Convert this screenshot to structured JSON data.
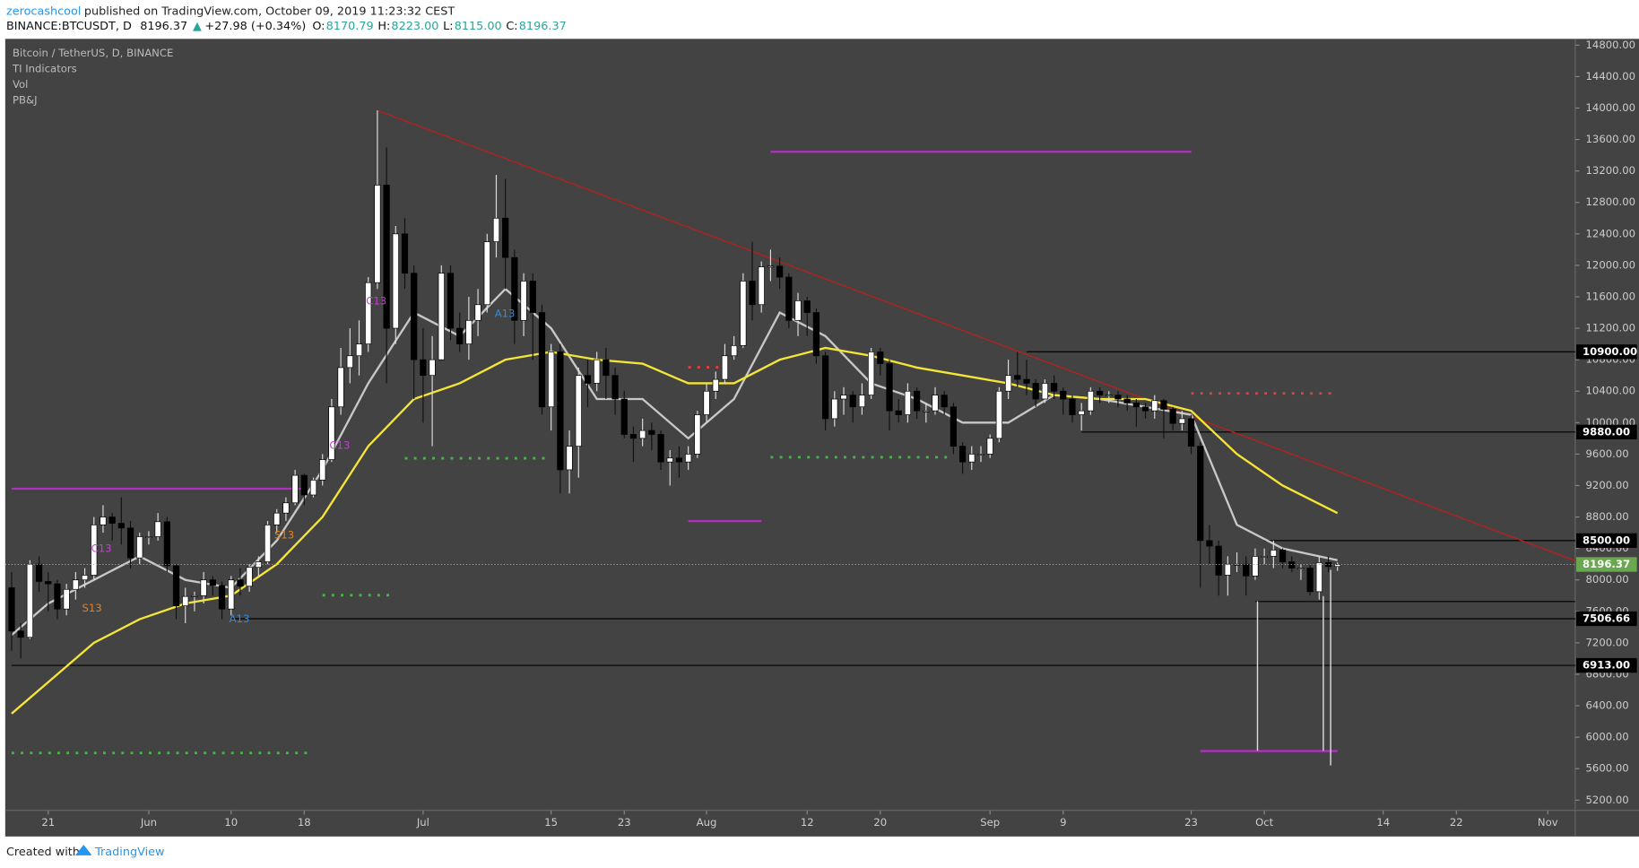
{
  "header": {
    "publisher": "zerocashcool",
    "published": "published on TradingView.com, October 09, 2019 11:23:32 CEST",
    "symbol": "BINANCE:BTCUSDT, D",
    "price": "8196.37",
    "arrow": "▲",
    "change": "+27.98 (+0.34%)",
    "ohlc": [
      {
        "key": "O:",
        "value": "8170.79"
      },
      {
        "key": "H:",
        "value": "8223.00"
      },
      {
        "key": "L:",
        "value": "8115.00"
      },
      {
        "key": "C:",
        "value": "8196.37"
      }
    ]
  },
  "footer": {
    "created": "Created with",
    "brand": "TradingView"
  },
  "chart_data": {
    "type": "candlestick",
    "legend": [
      "Bitcoin / TetherUS, D, BINANCE",
      "TI Indicators",
      "Vol",
      "PB&J"
    ],
    "xlim": [
      -0.7,
      171
    ],
    "ylim": [
      5070,
      14880
    ],
    "xticks": [
      {
        "value": 4,
        "label": "21"
      },
      {
        "value": 15,
        "label": "Jun"
      },
      {
        "value": 24,
        "label": "10"
      },
      {
        "value": 32,
        "label": "18"
      },
      {
        "value": 45,
        "label": "Jul"
      },
      {
        "value": 59,
        "label": "15"
      },
      {
        "value": 67,
        "label": "23"
      },
      {
        "value": 76,
        "label": "Aug"
      },
      {
        "value": 87,
        "label": "12"
      },
      {
        "value": 95,
        "label": "20"
      },
      {
        "value": 107,
        "label": "Sep"
      },
      {
        "value": 115,
        "label": "9"
      },
      {
        "value": 129,
        "label": "23"
      },
      {
        "value": 137,
        "label": "Oct"
      },
      {
        "value": 150,
        "label": "14"
      },
      {
        "value": 158,
        "label": "22"
      },
      {
        "value": 168,
        "label": "Nov"
      }
    ],
    "yticks": [
      {
        "value": 5200,
        "label": "5200.00"
      },
      {
        "value": 5600,
        "label": "5600.00"
      },
      {
        "value": 6000,
        "label": "6000.00"
      },
      {
        "value": 6400,
        "label": "6400.00"
      },
      {
        "value": 6800,
        "label": "6800.00"
      },
      {
        "value": 7200,
        "label": "7200.00"
      },
      {
        "value": 7600,
        "label": "7600.00"
      },
      {
        "value": 8000,
        "label": "8000.00"
      },
      {
        "value": 8400,
        "label": "8400.00"
      },
      {
        "value": 8800,
        "label": "8800.00"
      },
      {
        "value": 9200,
        "label": "9200.00"
      },
      {
        "value": 9600,
        "label": "9600.00"
      },
      {
        "value": 10000,
        "label": "10000.00"
      },
      {
        "value": 10400,
        "label": "10400.00"
      },
      {
        "value": 10800,
        "label": "10800.00"
      },
      {
        "value": 11200,
        "label": "11200.00"
      },
      {
        "value": 11600,
        "label": "11600.00"
      },
      {
        "value": 12000,
        "label": "12000.00"
      },
      {
        "value": 12400,
        "label": "12400.00"
      },
      {
        "value": 12800,
        "label": "12800.00"
      },
      {
        "value": 13200,
        "label": "13200.00"
      },
      {
        "value": 13600,
        "label": "13600.00"
      },
      {
        "value": 14000,
        "label": "14000.00"
      },
      {
        "value": 14400,
        "label": "14400.00"
      },
      {
        "value": 14800,
        "label": "14800.00"
      }
    ],
    "open": [
      7900,
      7350,
      7270,
      8200,
      7980,
      7950,
      7630,
      7880,
      8000,
      8060,
      8700,
      8800,
      8720,
      8660,
      8280,
      8550,
      8550,
      8740,
      8180,
      7670,
      7790,
      7800,
      8000,
      7930,
      7630,
      8000,
      7920,
      8160,
      8230,
      8700,
      8850,
      8980,
      9330,
      9080,
      9270,
      9530,
      10200,
      10700,
      10850,
      11000,
      11780,
      13020,
      11200,
      12400,
      11900,
      10800,
      10600,
      10800,
      11900,
      11200,
      11000,
      11300,
      11500,
      12300,
      12600,
      12100,
      11300,
      11800,
      11400,
      10200,
      10900,
      9400,
      9700,
      10600,
      10500,
      10800,
      10600,
      10300,
      9850,
      9800,
      9900,
      9850,
      9500,
      9550,
      9500,
      9600,
      10100,
      10400,
      10550,
      10850,
      10980,
      11800,
      11500,
      11980,
      11990,
      11850,
      11300,
      11550,
      11400,
      10850,
      10050,
      10300,
      10350,
      10200,
      10350,
      10900,
      10750,
      10150,
      10100,
      10400,
      10150,
      10150,
      10350,
      10200,
      9700,
      9500,
      9600,
      9600,
      9800,
      10400,
      10600,
      10550,
      10500,
      10300,
      10500,
      10400,
      10300,
      10100,
      10150,
      10400,
      10350,
      10350,
      10300,
      10250,
      10200,
      10150,
      10280,
      10170,
      9990,
      10050,
      9700,
      8500,
      8430,
      8060,
      8200,
      8200,
      8050,
      8300,
      8300,
      8380,
      8230,
      8150,
      8150,
      7850,
      8220,
      8170.79
    ],
    "high": [
      8100,
      7450,
      8250,
      8300,
      8100,
      8000,
      7950,
      8100,
      8150,
      8800,
      8950,
      8850,
      9050,
      8750,
      8600,
      8620,
      8850,
      8800,
      8200,
      7900,
      7850,
      8100,
      8050,
      7980,
      8050,
      8150,
      8200,
      8300,
      8750,
      8900,
      9050,
      9400,
      9350,
      9300,
      9600,
      10300,
      10950,
      11200,
      11300,
      11850,
      13970,
      13500,
      12500,
      12600,
      12000,
      11200,
      11100,
      12000,
      12000,
      11400,
      11600,
      11700,
      12400,
      13150,
      13100,
      12200,
      11900,
      11900,
      11500,
      11000,
      11000,
      9900,
      10700,
      10800,
      10900,
      10950,
      10700,
      10400,
      9950,
      10050,
      10000,
      9900,
      9650,
      9700,
      9700,
      10150,
      10500,
      10650,
      11000,
      11100,
      11900,
      12300,
      12050,
      12200,
      12100,
      11900,
      11650,
      11600,
      11450,
      10900,
      10400,
      10450,
      10400,
      10500,
      10950,
      10950,
      10800,
      10300,
      10500,
      10450,
      10250,
      10450,
      10400,
      10250,
      9750,
      9700,
      9700,
      9850,
      10450,
      10800,
      10900,
      10800,
      10550,
      10550,
      10600,
      10450,
      10350,
      10250,
      10450,
      10450,
      10400,
      10400,
      10350,
      10300,
      10250,
      10350,
      10300,
      10200,
      10150,
      10100,
      9750,
      8700,
      8500,
      8300,
      8350,
      8300,
      8400,
      8400,
      8500,
      8400,
      8300,
      8200,
      8200,
      8300,
      8300,
      8223
    ],
    "low": [
      7100,
      7000,
      7250,
      7850,
      7600,
      7500,
      7550,
      7750,
      7900,
      8000,
      8600,
      8500,
      8450,
      8150,
      8200,
      8450,
      8500,
      8100,
      7500,
      7450,
      7600,
      7700,
      7800,
      7500,
      7550,
      7800,
      7850,
      8050,
      8200,
      8600,
      8750,
      8950,
      8950,
      9050,
      9200,
      9500,
      10100,
      10500,
      10600,
      10900,
      11700,
      10500,
      11000,
      11700,
      10300,
      10000,
      9700,
      10800,
      11050,
      10900,
      10800,
      11100,
      11400,
      12100,
      11700,
      11000,
      11100,
      10800,
      10100,
      9900,
      9100,
      9100,
      9300,
      10200,
      10400,
      10300,
      10100,
      9800,
      9500,
      9700,
      9650,
      9400,
      9200,
      9300,
      9400,
      9550,
      10000,
      10300,
      10500,
      10800,
      10950,
      11300,
      11400,
      11800,
      11700,
      11200,
      11100,
      11100,
      10750,
      9900,
      9950,
      10100,
      10000,
      10100,
      10300,
      10600,
      9900,
      10000,
      10000,
      10050,
      10000,
      10100,
      10100,
      9600,
      9350,
      9400,
      9500,
      9550,
      9750,
      10300,
      10450,
      10350,
      10200,
      10250,
      10300,
      10100,
      10000,
      9900,
      10100,
      10250,
      10250,
      10200,
      10150,
      9950,
      10050,
      10050,
      9800,
      9900,
      9900,
      9600,
      7900,
      8200,
      7800,
      7800,
      8100,
      7800,
      8000,
      8200,
      8150,
      8150,
      8100,
      8000,
      7800,
      7750,
      8100,
      8115
    ],
    "close": [
      7350,
      7270,
      8200,
      7980,
      7950,
      7630,
      7880,
      8000,
      8060,
      8700,
      8800,
      8720,
      8660,
      8280,
      8550,
      8550,
      8740,
      8180,
      7670,
      7790,
      7800,
      8000,
      7930,
      7630,
      8000,
      7920,
      8160,
      8230,
      8700,
      8850,
      8980,
      9330,
      9080,
      9270,
      9530,
      10200,
      10700,
      10850,
      11000,
      11780,
      13020,
      11200,
      12400,
      11900,
      10800,
      10600,
      10800,
      11900,
      11200,
      11000,
      11300,
      11500,
      12300,
      12600,
      12100,
      11300,
      11800,
      11400,
      10200,
      10900,
      9400,
      9700,
      10600,
      10500,
      10800,
      10600,
      10300,
      9850,
      9800,
      9900,
      9850,
      9500,
      9550,
      9500,
      9600,
      10100,
      10400,
      10550,
      10850,
      10980,
      11800,
      11500,
      11980,
      11990,
      11850,
      11300,
      11550,
      11400,
      10850,
      10050,
      10300,
      10350,
      10200,
      10350,
      10900,
      10750,
      10150,
      10100,
      10400,
      10150,
      10150,
      10350,
      10200,
      9700,
      9500,
      9600,
      9600,
      9800,
      10400,
      10600,
      10550,
      10500,
      10300,
      10500,
      10400,
      10300,
      10100,
      10150,
      10400,
      10350,
      10350,
      10300,
      10250,
      10200,
      10150,
      10280,
      10170,
      9990,
      10050,
      9700,
      8500,
      8430,
      8060,
      8200,
      8200,
      8050,
      8300,
      8300,
      8380,
      8230,
      8150,
      8150,
      7850,
      8220,
      8170,
      8196.37
    ],
    "last_label": "8196.37",
    "moving_averages": [
      {
        "color": "#c8c8c8",
        "x": [
          0,
          4,
          9,
          14,
          19,
          24,
          29,
          34,
          39,
          44,
          49,
          54,
          59,
          64,
          69,
          74,
          79,
          84,
          89,
          94,
          99,
          104,
          109,
          114,
          119,
          124,
          129,
          134,
          139,
          145
        ],
        "values": [
          7300,
          7700,
          8000,
          8300,
          8000,
          7900,
          8500,
          9400,
          10500,
          11400,
          11100,
          11700,
          11200,
          10300,
          10300,
          9800,
          10300,
          11400,
          11100,
          10500,
          10300,
          10000,
          10000,
          10350,
          10300,
          10200,
          10100,
          8700,
          8400,
          8250
        ]
      },
      {
        "color": "#f5e536",
        "x": [
          0,
          4,
          9,
          14,
          19,
          24,
          29,
          34,
          39,
          44,
          49,
          54,
          59,
          64,
          69,
          74,
          79,
          84,
          89,
          94,
          99,
          104,
          109,
          114,
          119,
          124,
          129,
          134,
          139,
          145
        ],
        "values": [
          6300,
          6700,
          7200,
          7500,
          7700,
          7800,
          8200,
          8800,
          9700,
          10300,
          10500,
          10800,
          10900,
          10800,
          10750,
          10500,
          10500,
          10800,
          10950,
          10850,
          10700,
          10600,
          10500,
          10350,
          10300,
          10300,
          10150,
          9600,
          9200,
          8850
        ]
      }
    ],
    "levels": [
      {
        "value": 10900,
        "label": "10900.00",
        "from": 111
      },
      {
        "value": 9880,
        "label": "9880.00",
        "from": 117
      },
      {
        "value": 8500,
        "label": "8500.00",
        "from": 137
      },
      {
        "value": 7725,
        "from": 136
      },
      {
        "value": 7506.66,
        "label": "7506.66",
        "from": 24
      },
      {
        "value": 6913,
        "label": "6913.00",
        "from": 0
      }
    ],
    "trendline": {
      "color": "#b22222",
      "from": [
        40,
        13970
      ],
      "to": [
        171,
        8244
      ]
    },
    "segments": [
      {
        "color": "#b030c0",
        "from": 0,
        "to": 32,
        "value": 9160
      },
      {
        "color": "#b030c0",
        "from": 83,
        "to": 129,
        "value": 13444
      },
      {
        "color": "#b030c0",
        "from": 74,
        "to": 82,
        "value": 8749
      },
      {
        "color": "#b030c0",
        "from": 130,
        "to": 145,
        "value": 5824
      }
    ],
    "dotted": [
      {
        "color": "#e04040",
        "from": 74,
        "to": 78,
        "value": 10704
      },
      {
        "color": "#e04040",
        "from": 129,
        "to": 145,
        "value": 10372
      },
      {
        "color": "#4caf50",
        "from": 43,
        "to": 59,
        "value": 9547
      },
      {
        "color": "#4caf50",
        "from": 83,
        "to": 103,
        "value": 9560
      },
      {
        "color": "#4caf50",
        "from": 34,
        "to": 42,
        "value": 7806
      },
      {
        "color": "#4caf50",
        "from": 0,
        "to": 33,
        "value": 5800
      }
    ],
    "annotations": [
      {
        "text": "C13",
        "color": "#c040d0"
      },
      {
        "text": "S13",
        "color": "#e08020"
      },
      {
        "text": "S13",
        "color": "#e08020"
      },
      {
        "text": "A13",
        "color": "#3a8ad0"
      },
      {
        "text": "C13",
        "color": "#c040d0"
      },
      {
        "text": "C13",
        "color": "#c040d0"
      },
      {
        "text": "A13",
        "color": "#3a8ad0"
      }
    ]
  }
}
